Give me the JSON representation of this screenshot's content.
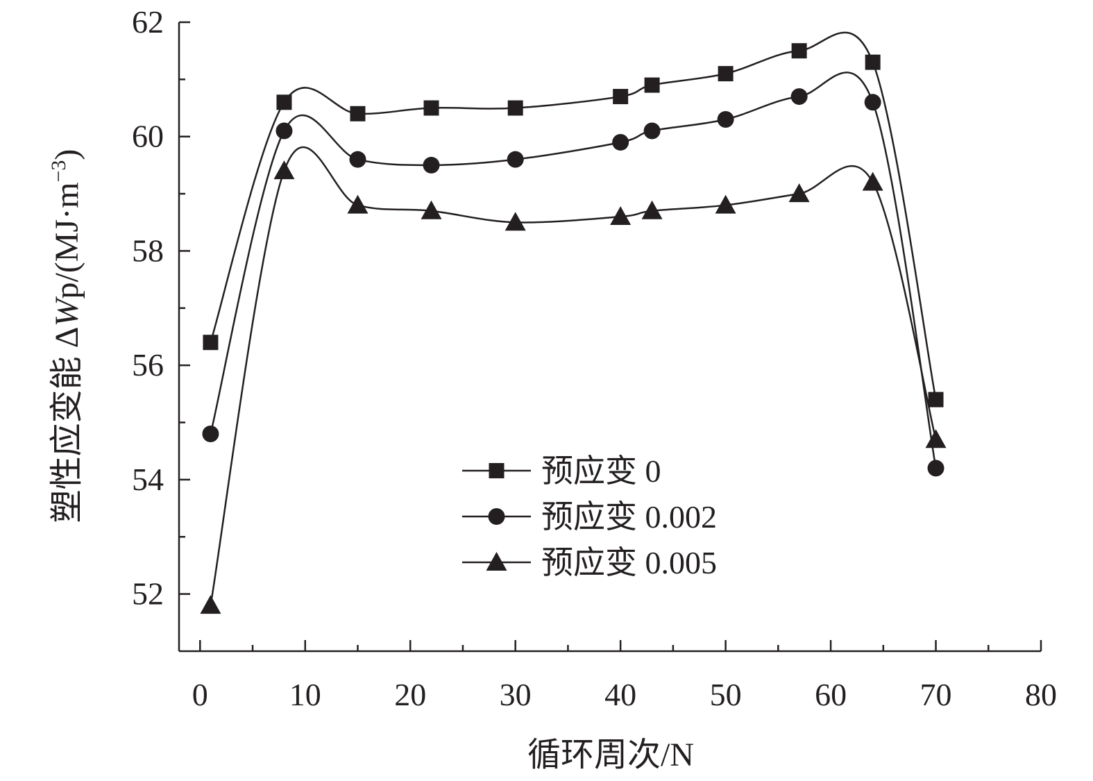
{
  "chart_data": {
    "type": "line",
    "title": "",
    "xlabel": "循环周次/N",
    "ylabel_parts": {
      "prefix": "塑性应变能 Δ",
      "italic": "W",
      "suffix": "p/(MJ·m",
      "superscript": "−3",
      "close": ")"
    },
    "xlim": [
      -2,
      80
    ],
    "ylim": [
      51,
      62
    ],
    "x_ticks": [
      0,
      10,
      20,
      30,
      40,
      50,
      60,
      70,
      80
    ],
    "x_tick_labels": [
      "0",
      "10",
      "20",
      "30",
      "40",
      "50",
      "60",
      "70",
      "80"
    ],
    "y_ticks": [
      52,
      54,
      56,
      58,
      60,
      62
    ],
    "y_tick_labels": [
      "52",
      "54",
      "56",
      "58",
      "60",
      "62"
    ],
    "grid": false,
    "legend_position": "center-left",
    "x": [
      1,
      8,
      15,
      22,
      30,
      40,
      43,
      50,
      57,
      64,
      70
    ],
    "series": [
      {
        "name": "预应变 0",
        "marker": "square",
        "values": [
          56.4,
          60.6,
          60.4,
          60.5,
          60.5,
          60.7,
          60.9,
          61.1,
          61.5,
          61.3,
          55.4
        ]
      },
      {
        "name": "预应变 0.002",
        "marker": "circle",
        "values": [
          54.8,
          60.1,
          59.6,
          59.5,
          59.6,
          59.9,
          60.1,
          60.3,
          60.7,
          60.6,
          54.2
        ]
      },
      {
        "name": "预应变 0.005",
        "marker": "triangle",
        "values": [
          51.8,
          59.4,
          58.8,
          58.7,
          58.5,
          58.6,
          58.7,
          58.8,
          59.0,
          59.2,
          54.7
        ]
      }
    ],
    "colors": {
      "ink": "#231f20",
      "background": "#ffffff"
    }
  }
}
